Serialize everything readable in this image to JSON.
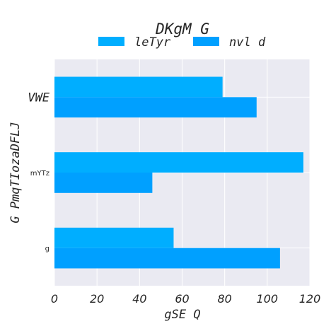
{
  "chart_data": {
    "type": "bar",
    "orientation": "horizontal",
    "title": "DKgM G",
    "xlabel": "gSE Q",
    "ylabel": "G PmqTIozaDFLJ",
    "categories": [
      "VWE",
      "mYTz",
      "g"
    ],
    "category_label_styles": [
      "large",
      "small",
      "small"
    ],
    "series": [
      {
        "name": "leTyr",
        "values": [
          79,
          117,
          56
        ],
        "color": "#00aeff"
      },
      {
        "name": "nvl d",
        "values": [
          95,
          46,
          106
        ],
        "color": "#00a0ff"
      }
    ],
    "xlim": [
      0,
      120
    ],
    "xticks": [
      "0",
      "20",
      "40",
      "60",
      "80",
      "100",
      "120"
    ],
    "grid": true,
    "legend_position": "top-center",
    "background": "#eaeaf2"
  }
}
